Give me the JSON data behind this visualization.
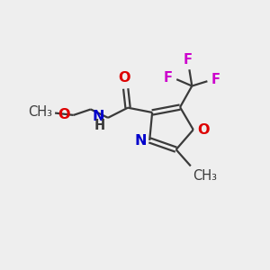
{
  "background_color": "#eeeeee",
  "bond_color": "#3a3a3a",
  "atom_colors": {
    "O": "#dd0000",
    "N": "#0000cc",
    "F": "#cc00cc",
    "C": "#3a3a3a"
  },
  "figsize": [
    3.0,
    3.0
  ],
  "dpi": 100,
  "xlim": [
    0,
    10
  ],
  "ylim": [
    0,
    10
  ]
}
